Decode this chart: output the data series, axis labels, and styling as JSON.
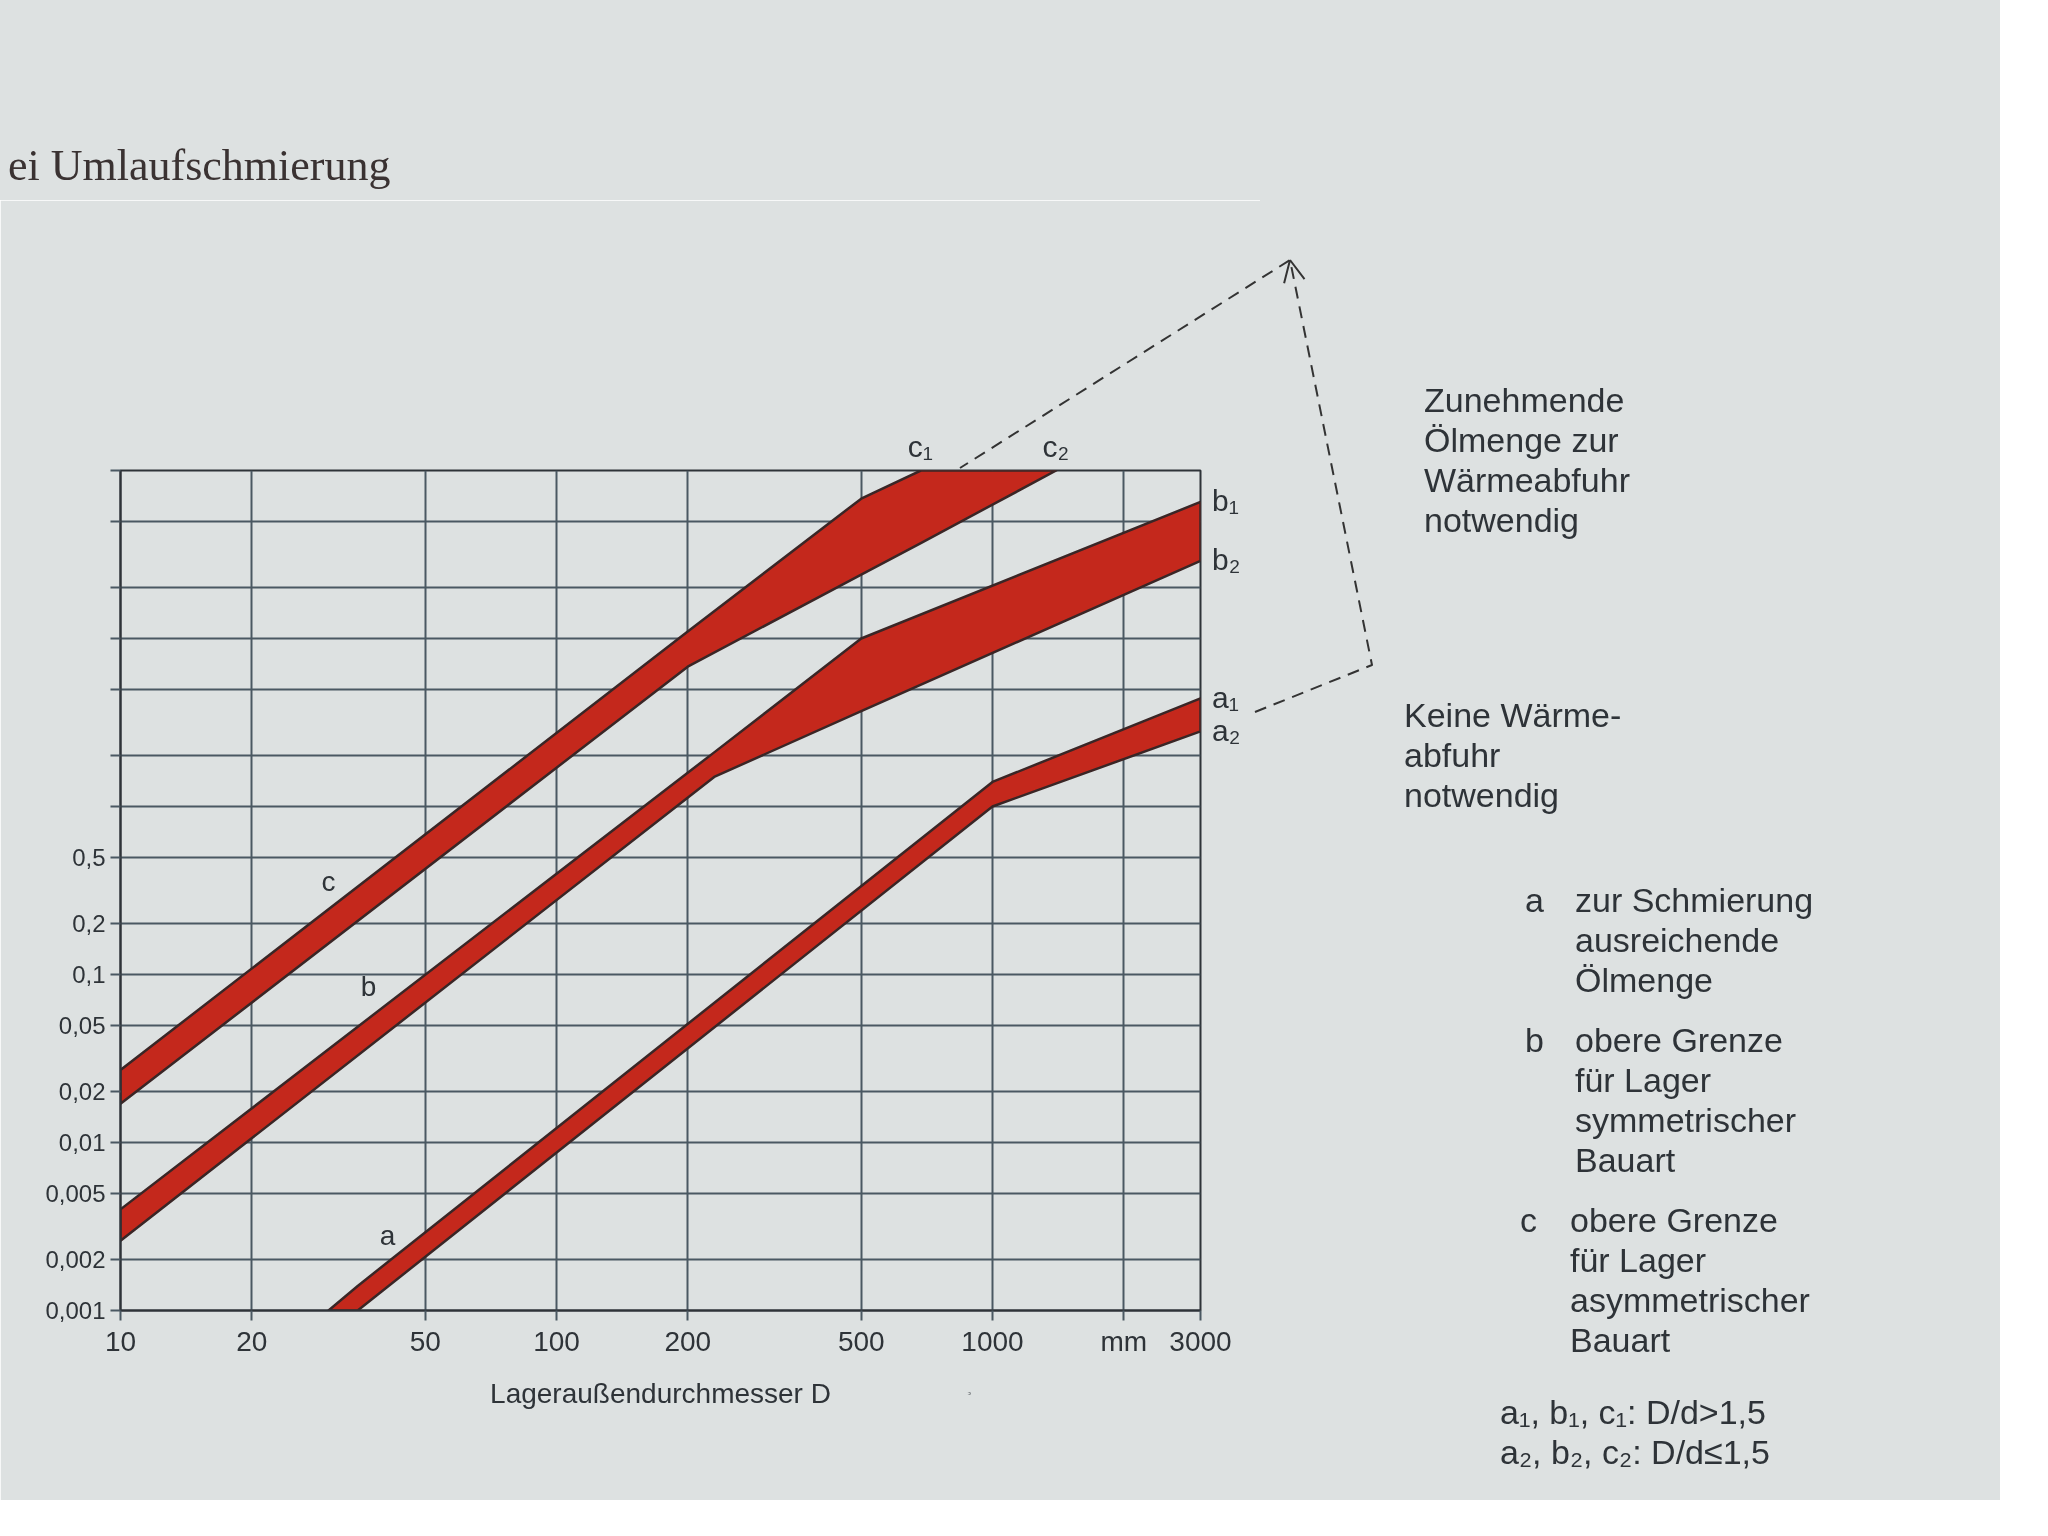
{
  "chart_data": {
    "type": "line",
    "title": "ei Umlaufschmierung",
    "xlabel": "Lageraußendurchmesser D",
    "log": "xy",
    "grid": true,
    "xlim": [
      10,
      3000
    ],
    "ylim": [
      0.001,
      100
    ],
    "xticks": [
      10,
      20,
      50,
      100,
      200,
      500,
      1000,
      {
        "value": 2000,
        "label": "mm"
      },
      3000
    ],
    "yticks": [
      {
        "value": 0.001,
        "label": "0,001"
      },
      {
        "value": 0.002,
        "label": "0,002"
      },
      {
        "value": 0.005,
        "label": "0,005"
      },
      {
        "value": 0.01,
        "label": "0,01"
      },
      {
        "value": 0.02,
        "label": "0,02"
      },
      {
        "value": 0.05,
        "label": "0,05"
      },
      {
        "value": 0.1,
        "label": "0,1"
      },
      {
        "value": 0.2,
        "label": "0,2"
      },
      {
        "value": 0.5,
        "label": "0,5"
      },
      {
        "value": 1,
        "label": null
      },
      {
        "value": 2,
        "label": null
      },
      {
        "value": 5,
        "label": null
      },
      {
        "value": 10,
        "label": null
      },
      {
        "value": 20,
        "label": null
      },
      {
        "value": 50,
        "label": null
      },
      {
        "value": 100,
        "label": null
      }
    ],
    "series": [
      {
        "color": "#c4281c",
        "x": [
          30,
          35,
          1000,
          3000
        ],
        "values": [
          null,
          null,
          null,
          null
        ],
        "lower": [
          0.001,
          0.001,
          1.0,
          2.8
        ],
        "upper": [
          0.001,
          0.0014,
          1.4,
          4.4
        ]
      },
      {
        "color": "#c4281c",
        "x": [
          10,
          230,
          500,
          3000
        ],
        "values": [
          null,
          null,
          null,
          null
        ],
        "lower": [
          0.0026,
          1.5,
          3.7,
          29
        ],
        "upper": [
          0.004,
          2.1,
          10,
          65
        ]
      },
      {
        "color": "#c4281c",
        "x": [
          10,
          200,
          500,
          685,
          1400
        ],
        "values": [
          null,
          null,
          null,
          null,
          null
        ],
        "lower": [
          0.017,
          6.8,
          24,
          37,
          100
        ],
        "upper": [
          0.027,
          11,
          68,
          100,
          100
        ]
      }
    ],
    "annotations": [
      "Zunehmende\nÖlmenge zur\nWärmeabfuhr\nnotwendig",
      "Keine Wärme-\nabfuhr\nnotwendig",
      "a zur Schmierung\nausreichende\nÖlmenge",
      "b obere Grenze\nfür Lager\nsymmetrischer\nBauart",
      "c obere Grenze\nfür Lager\nasymmetrischer\nBauart",
      "a₁, b₁, c₁: D/d>1,5\na₂, b₂, c₂: D/d≤1,5",
      "a",
      "b",
      "c",
      {
        "text": "a₁",
        "x": 3000,
        "y": 4.4
      },
      {
        "text": "a₂",
        "x": 3000,
        "y": 2.8
      },
      {
        "text": "b₁",
        "x": 3000,
        "y": 65
      },
      {
        "text": "b₂",
        "x": 3000,
        "y": 29
      },
      {
        "text": "c₁",
        "x": 685,
        "y": 100
      },
      {
        "text": "c₂",
        "x": 1400,
        "y": 100
      }
    ]
  }
}
